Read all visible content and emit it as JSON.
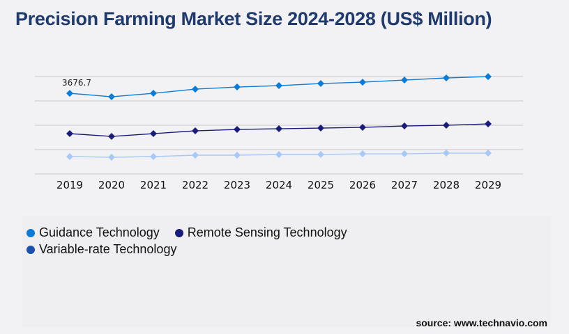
{
  "title": "Precision Farming Market Size 2024-2028 (US$ Million)",
  "source": "source: www.technavio.com",
  "chart_data": {
    "type": "line",
    "title": "Precision Farming Market Size 2024-2028 (US$ Million)",
    "categories": [
      "2019",
      "2020",
      "2021",
      "2022",
      "2023",
      "2024",
      "2025",
      "2026",
      "2027",
      "2028",
      "2029"
    ],
    "ylim": [
      0,
      4440
    ],
    "grid": true,
    "legend_position": "bottom-left",
    "annotation": "3676.7",
    "series": [
      {
        "name": "Guidance Technology",
        "color": "#0a7bd6",
        "legend_color": "#0a7bd6",
        "values": [
          3676.7,
          3519,
          3677,
          3867,
          3963,
          4026,
          4121,
          4184,
          4280,
          4375,
          4438
        ]
      },
      {
        "name": "Remote Sensing Technology",
        "color": "#1a1a7a",
        "legend_color": "#1a1a7a",
        "values": [
          1839,
          1712,
          1839,
          1965,
          2029,
          2061,
          2092,
          2124,
          2187,
          2219,
          2282
        ]
      },
      {
        "name": "Variable-rate Technology",
        "color": "#a8c8f8",
        "legend_color": "#1b4fb0",
        "values": [
          793,
          761,
          793,
          856,
          856,
          888,
          888,
          919,
          919,
          951,
          951
        ]
      }
    ]
  }
}
